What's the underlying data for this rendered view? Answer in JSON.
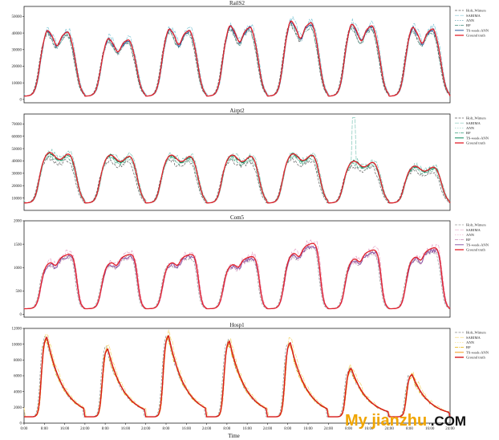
{
  "figure": {
    "xlabel": "Time",
    "xticks": [
      "0:00",
      "8:00",
      "16:00",
      "24:00",
      "8:00",
      "16:00",
      "24:00",
      "8:00",
      "16:00",
      "24:00",
      "8:00",
      "16:00",
      "24:00",
      "8:00",
      "16:00",
      "24:00",
      "8:00",
      "16:00",
      "24:00",
      "8:00",
      "16:00",
      "24:00"
    ]
  },
  "watermark": {
    "main": "My jianzhu",
    "suffix": ".COM"
  },
  "chart_data": [
    {
      "type": "line",
      "title": "RailS2",
      "xlabel": "",
      "ylabel": "",
      "ylim": [
        -2000,
        56000
      ],
      "yticks": [
        0,
        10000,
        20000,
        30000,
        40000,
        50000
      ],
      "ytick_labels": [
        "0",
        "10000",
        "20000",
        "30000",
        "40000",
        "50000"
      ],
      "legend_position": "right",
      "x_unit": "hours",
      "x_range": [
        0,
        168
      ],
      "base_mode": "rail",
      "daily_base": [
        0,
        1,
        0,
        0,
        0,
        0,
        0,
        0,
        0,
        0,
        0,
        0,
        0,
        0,
        0,
        0,
        0,
        0,
        0,
        0,
        0,
        0,
        0,
        0
      ],
      "night_value": 2000,
      "day_peaks": [
        43000,
        38000,
        44000,
        46000,
        49000,
        47000,
        45000
      ],
      "series": [
        {
          "name": "Holt_Winters",
          "color": "#606060",
          "dash": "3,1.5",
          "width": 0.7,
          "amp": 0.96,
          "shift": -0.4,
          "noise": 1500
        },
        {
          "name": "SARIMA",
          "color": "#7fc6d6",
          "dash": "5,1.5",
          "width": 0.7,
          "amp": 1.03,
          "shift": 0.3,
          "noise": 2200
        },
        {
          "name": "ANN",
          "color": "#6fa8b8",
          "dash": "1.5,1.5",
          "width": 0.7,
          "amp": 0.98,
          "shift": 0.1,
          "noise": 1800
        },
        {
          "name": "RF",
          "color": "#3c8a7a",
          "dash": "4,1,1,1",
          "width": 0.7,
          "amp": 0.95,
          "shift": -0.2,
          "noise": 1600
        },
        {
          "name": "TS-week-ANN",
          "color": "#2d5d9f",
          "dash": "",
          "width": 1.0,
          "amp": 0.99,
          "shift": 0.0,
          "noise": 1200
        },
        {
          "name": "Ground truth",
          "color": "#e3212b",
          "dash": "",
          "width": 1.3,
          "amp": 1.0,
          "shift": 0.0,
          "noise": 0
        }
      ]
    },
    {
      "type": "line",
      "title": "Airpt2",
      "xlabel": "",
      "ylabel": "",
      "ylim": [
        0,
        78000
      ],
      "yticks": [
        10000,
        20000,
        30000,
        40000,
        50000,
        60000,
        70000
      ],
      "ytick_labels": [
        "10000",
        "20000",
        "30000",
        "40000",
        "50000",
        "60000",
        "70000"
      ],
      "legend_position": "right",
      "x_range": [
        0,
        168
      ],
      "base_mode": "plateau",
      "night_value": 6000,
      "day_peaks": [
        47000,
        45000,
        45000,
        45000,
        46000,
        40000,
        36000
      ],
      "spike": {
        "series": "SARIMA",
        "hour": 130,
        "value": 75000
      },
      "series": [
        {
          "name": "Holt_Winters",
          "color": "#606060",
          "dash": "3,1.5",
          "width": 0.7,
          "amp": 0.88,
          "shift": -0.5,
          "noise": 2000
        },
        {
          "name": "SARIMA",
          "color": "#7fc6b8",
          "dash": "5,1.5",
          "width": 0.7,
          "amp": 1.02,
          "shift": 0.3,
          "noise": 2500
        },
        {
          "name": "ANN",
          "color": "#9ed6c6",
          "dash": "1.5,1.5",
          "width": 0.7,
          "amp": 0.96,
          "shift": 0.2,
          "noise": 2000
        },
        {
          "name": "RF",
          "color": "#3fa17e",
          "dash": "4,1,1,1",
          "width": 0.7,
          "amp": 0.94,
          "shift": -0.2,
          "noise": 1800
        },
        {
          "name": "TS-week-ANN",
          "color": "#0e8c5a",
          "dash": "",
          "width": 1.0,
          "amp": 0.99,
          "shift": 0.0,
          "noise": 1200
        },
        {
          "name": "Ground truth",
          "color": "#e3212b",
          "dash": "",
          "width": 1.3,
          "amp": 1.0,
          "shift": 0.0,
          "noise": 0
        }
      ]
    },
    {
      "type": "line",
      "title": "Com5",
      "xlabel": "",
      "ylabel": "",
      "ylim": [
        -60,
        2000
      ],
      "yticks": [
        0,
        500,
        1000,
        1500,
        2000
      ],
      "ytick_labels": [
        "0",
        "500",
        "1000",
        "1500",
        "2000"
      ],
      "legend_position": "right",
      "x_range": [
        0,
        168
      ],
      "base_mode": "ramp",
      "night_value": 120,
      "day_peaks": [
        1350,
        1350,
        1350,
        1300,
        1600,
        1450,
        1500
      ],
      "series": [
        {
          "name": "Holt_Winters",
          "color": "#9a9a9a",
          "dash": "3,1.5",
          "width": 0.7,
          "amp": 0.95,
          "shift": -0.5,
          "noise": 60
        },
        {
          "name": "SARIMA",
          "color": "#e7a6c8",
          "dash": "5,1.5",
          "width": 0.7,
          "amp": 1.03,
          "shift": 0.3,
          "noise": 90
        },
        {
          "name": "ANN",
          "color": "#f0b8d2",
          "dash": "1.5,1.5",
          "width": 0.7,
          "amp": 0.97,
          "shift": 0.1,
          "noise": 80
        },
        {
          "name": "RF",
          "color": "#c98ab5",
          "dash": "4,1,1,1",
          "width": 0.7,
          "amp": 0.95,
          "shift": -0.2,
          "noise": 70
        },
        {
          "name": "TS-week-ANN",
          "color": "#8a5aa8",
          "dash": "",
          "width": 1.0,
          "amp": 0.96,
          "shift": 0.0,
          "noise": 50
        },
        {
          "name": "Ground truth",
          "color": "#e3212b",
          "dash": "",
          "width": 1.3,
          "amp": 1.0,
          "shift": 0.0,
          "noise": 0
        }
      ]
    },
    {
      "type": "line",
      "title": "Hosp1",
      "xlabel": "",
      "ylabel": "",
      "ylim": [
        0,
        12000
      ],
      "yticks": [
        0,
        2000,
        4000,
        6000,
        8000,
        10000,
        12000
      ],
      "ytick_labels": [
        "0",
        "2000",
        "4000",
        "6000",
        "8000",
        "10000",
        "12000"
      ],
      "legend_position": "right",
      "x_range": [
        0,
        168
      ],
      "base_mode": "decay",
      "night_value": 800,
      "day_peaks": [
        11000,
        9500,
        11200,
        10500,
        10300,
        7000,
        6200
      ],
      "series": [
        {
          "name": "Holt_Winters",
          "color": "#8a8a8a",
          "dash": "3,1.5",
          "width": 0.7,
          "amp": 1.02,
          "shift": -0.5,
          "noise": 400
        },
        {
          "name": "SARIMA",
          "color": "#f3d36b",
          "dash": "5,1.5",
          "width": 0.7,
          "amp": 1.06,
          "shift": 0.3,
          "noise": 600
        },
        {
          "name": "ANN",
          "color": "#f7e39a",
          "dash": "1.5,1.5",
          "width": 0.7,
          "amp": 1.0,
          "shift": 0.1,
          "noise": 500
        },
        {
          "name": "RF",
          "color": "#e7b000",
          "dash": "4,1,1,1",
          "width": 0.7,
          "amp": 0.98,
          "shift": -0.2,
          "noise": 450
        },
        {
          "name": "TS-week-ANN",
          "color": "#f39a18",
          "dash": "",
          "width": 1.0,
          "amp": 0.99,
          "shift": 0.0,
          "noise": 300
        },
        {
          "name": "Ground truth",
          "color": "#d7191c",
          "dash": "",
          "width": 1.4,
          "amp": 1.0,
          "shift": 0.0,
          "noise": 0
        }
      ]
    }
  ]
}
